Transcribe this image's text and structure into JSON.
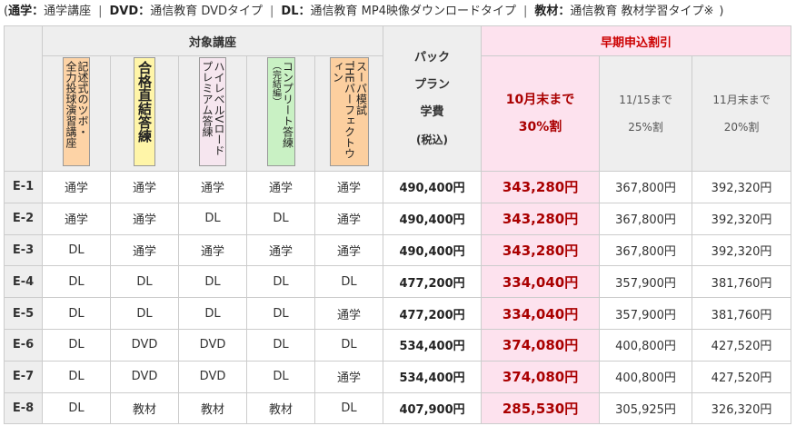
{
  "legend": {
    "open": "(",
    "close": ")",
    "separator": "|",
    "colon": "：",
    "items": [
      {
        "key": "通学",
        "desc": "通学講座"
      },
      {
        "key": "DVD",
        "desc": "通信教育 DVDタイプ"
      },
      {
        "key": "DL",
        "desc": "通信教育 MP4映像ダウンロードタイプ"
      },
      {
        "key": "教材",
        "desc": "通信教育 教材学習タイプ※"
      }
    ]
  },
  "table": {
    "courses_header": "対象講座",
    "courses": [
      {
        "lines": [
          "記述式のツボ・",
          "全力投球演習講座"
        ],
        "color": "#fdd3a6"
      },
      {
        "lines": [
          "合格直結答練"
        ],
        "color": "#fff5a8"
      },
      {
        "lines": [
          "ハイレベルVロード",
          "プレミアム答練"
        ],
        "color": "#f6e6ef"
      },
      {
        "lines": [
          "コンプリート答練",
          "（完結編）"
        ],
        "color": "#c9f1c4"
      },
      {
        "lines": [
          "スーパ模試",
          "THEパーフェクトウィン"
        ],
        "color": "#fccf9f"
      }
    ],
    "pack_header": [
      "パック",
      "プラン",
      "学費",
      "(税込)"
    ],
    "discount_header": "早期申込割引",
    "discounts": [
      [
        "10月末まで",
        "30%割"
      ],
      [
        "11/15まで",
        "25%割"
      ],
      [
        "11月末まで",
        "20%割"
      ]
    ],
    "rows": [
      {
        "code": "E-1",
        "courses": [
          "通学",
          "通学",
          "通学",
          "通学",
          "通学"
        ],
        "price": "490,400円",
        "discounts": [
          "343,280円",
          "367,800円",
          "392,320円"
        ]
      },
      {
        "code": "E-2",
        "courses": [
          "通学",
          "通学",
          "DL",
          "DL",
          "通学"
        ],
        "price": "490,400円",
        "discounts": [
          "343,280円",
          "367,800円",
          "392,320円"
        ]
      },
      {
        "code": "E-3",
        "courses": [
          "DL",
          "通学",
          "通学",
          "通学",
          "通学"
        ],
        "price": "490,400円",
        "discounts": [
          "343,280円",
          "367,800円",
          "392,320円"
        ]
      },
      {
        "code": "E-4",
        "courses": [
          "DL",
          "DL",
          "DL",
          "DL",
          "DL"
        ],
        "price": "477,200円",
        "discounts": [
          "334,040円",
          "357,900円",
          "381,760円"
        ]
      },
      {
        "code": "E-5",
        "courses": [
          "DL",
          "DL",
          "DL",
          "DL",
          "通学"
        ],
        "price": "477,200円",
        "discounts": [
          "334,040円",
          "357,900円",
          "381,760円"
        ]
      },
      {
        "code": "E-6",
        "courses": [
          "DL",
          "DVD",
          "DVD",
          "DL",
          "DL"
        ],
        "price": "534,400円",
        "discounts": [
          "374,080円",
          "400,800円",
          "427,520円"
        ]
      },
      {
        "code": "E-7",
        "courses": [
          "DL",
          "DVD",
          "DVD",
          "DL",
          "通学"
        ],
        "price": "534,400円",
        "discounts": [
          "374,080円",
          "400,800円",
          "427,520円"
        ]
      },
      {
        "code": "E-8",
        "courses": [
          "DL",
          "教材",
          "教材",
          "教材",
          "DL"
        ],
        "price": "407,900円",
        "discounts": [
          "285,530円",
          "305,925円",
          "326,320円"
        ]
      }
    ]
  }
}
